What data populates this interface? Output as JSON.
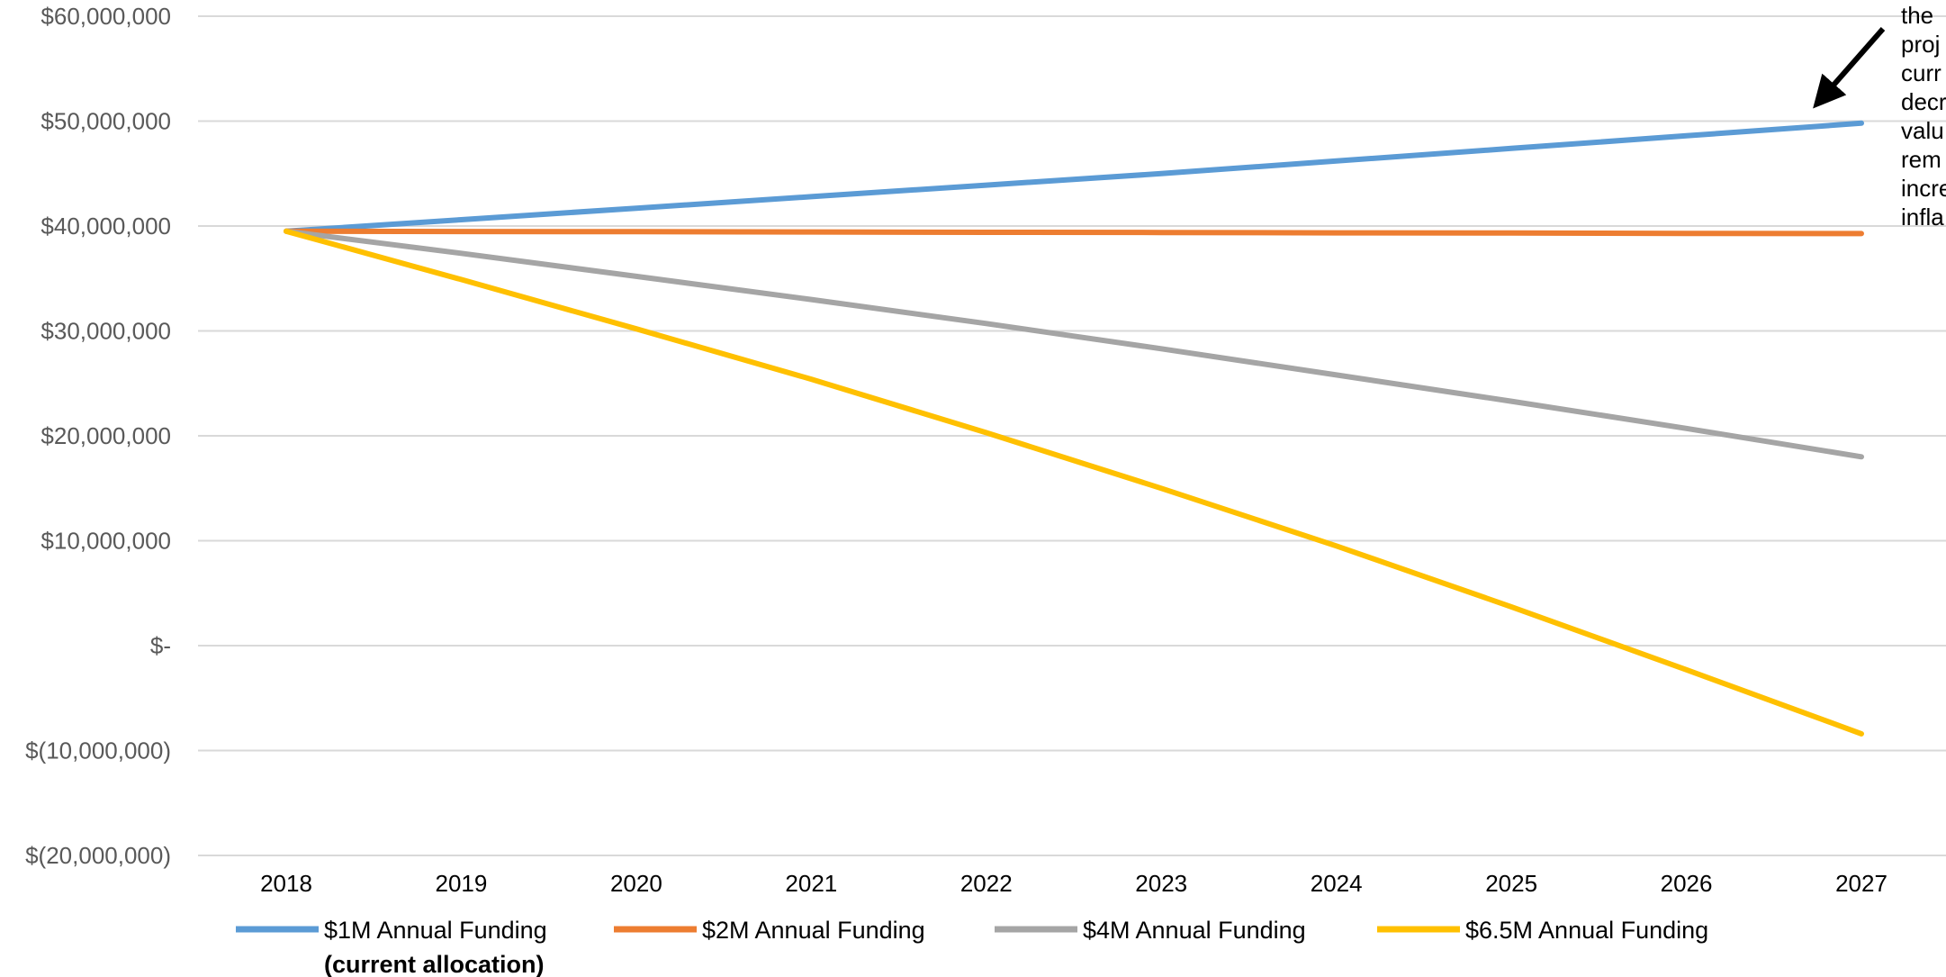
{
  "chart_data": {
    "type": "line",
    "x": [
      "2018",
      "2019",
      "2020",
      "2021",
      "2022",
      "2023",
      "2024",
      "2025",
      "2026",
      "2027"
    ],
    "y_ticks": [
      "$60,000,000",
      "$50,000,000",
      "$40,000,000",
      "$30,000,000",
      "$20,000,000",
      "$10,000,000",
      "$-",
      "$(10,000,000)",
      "$(20,000,000)"
    ],
    "y_tick_values": [
      60000000,
      50000000,
      40000000,
      30000000,
      20000000,
      10000000,
      0,
      -10000000,
      -20000000
    ],
    "ylim": [
      -20000000,
      60000000
    ],
    "grid": true,
    "legend_position": "bottom",
    "series": [
      {
        "name": "$1M Annual Funding",
        "subtitle": "(current allocation)",
        "color": "#5b9bd5",
        "values": [
          39500000,
          40600000,
          41700000,
          42800000,
          43900000,
          45000000,
          46200000,
          47400000,
          48600000,
          49800000
        ]
      },
      {
        "name": "$2M Annual Funding",
        "color": "#ed7d31",
        "values": [
          39500000,
          39480000,
          39460000,
          39430000,
          39400000,
          39380000,
          39350000,
          39330000,
          39300000,
          39280000
        ]
      },
      {
        "name": "$4M Annual Funding",
        "color": "#a5a5a5",
        "values": [
          39500000,
          37400000,
          35200000,
          33000000,
          30700000,
          28300000,
          25800000,
          23300000,
          20700000,
          18000000
        ]
      },
      {
        "name": "$6.5M Annual Funding",
        "color": "#ffc000",
        "values": [
          39500000,
          34900000,
          30200000,
          25400000,
          20300000,
          15000000,
          9500000,
          3700000,
          -2300000,
          -8400000
        ]
      }
    ],
    "annotation": {
      "lines": [
        "the",
        "proj",
        "curr",
        "decr",
        "valu",
        "rem",
        "incre",
        "infla"
      ]
    }
  }
}
